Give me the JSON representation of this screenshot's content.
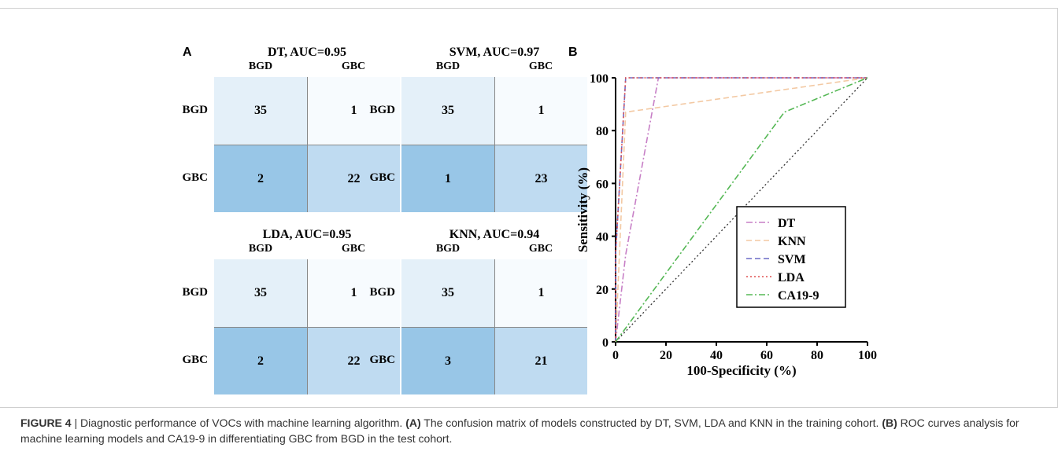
{
  "panel_labels": {
    "a": "A",
    "b": "B"
  },
  "matrices": [
    {
      "title": "DT, AUC=0.95",
      "col_labels": [
        "BGD",
        "GBC"
      ],
      "row_labels": [
        "BGD",
        "GBC"
      ],
      "cells": [
        [
          "35",
          "1"
        ],
        [
          "2",
          "22"
        ]
      ]
    },
    {
      "title": "SVM, AUC=0.97",
      "col_labels": [
        "BGD",
        "GBC"
      ],
      "row_labels": [
        "BGD",
        "GBC"
      ],
      "cells": [
        [
          "35",
          "1"
        ],
        [
          "1",
          "23"
        ]
      ]
    },
    {
      "title": "LDA, AUC=0.95",
      "col_labels": [
        "BGD",
        "GBC"
      ],
      "row_labels": [
        "BGD",
        "GBC"
      ],
      "cells": [
        [
          "35",
          "1"
        ],
        [
          "2",
          "22"
        ]
      ]
    },
    {
      "title": "KNN, AUC=0.94",
      "col_labels": [
        "BGD",
        "GBC"
      ],
      "row_labels": [
        "BGD",
        "GBC"
      ],
      "cells": [
        [
          "35",
          "1"
        ],
        [
          "3",
          "21"
        ]
      ]
    }
  ],
  "cell_colors": {
    "light": "#e4f0f9",
    "lightest": "#f7fbfe",
    "dark": "#98c6e7",
    "mid": "#bfdbf1"
  },
  "chart_data": {
    "type": "line",
    "xlabel": "100-Specificity (%)",
    "ylabel": "Sensitivity (%)",
    "xlim": [
      0,
      100
    ],
    "ylim": [
      0,
      100
    ],
    "xticks": [
      0,
      20,
      40,
      60,
      80,
      100
    ],
    "yticks": [
      0,
      20,
      40,
      60,
      80,
      100
    ],
    "grid": false,
    "legend_position": "bottom-right",
    "series": [
      {
        "name": "DT",
        "color": "#c77fc6",
        "dash": "dashdot",
        "points": [
          [
            0,
            0
          ],
          [
            4,
            33
          ],
          [
            17,
            100
          ],
          [
            100,
            100
          ]
        ]
      },
      {
        "name": "KNN",
        "color": "#f3c9a3",
        "dash": "dashed",
        "points": [
          [
            0,
            0
          ],
          [
            4,
            87
          ],
          [
            100,
            100
          ]
        ]
      },
      {
        "name": "SVM",
        "color": "#6c6cc6",
        "dash": "dashed",
        "points": [
          [
            0,
            0
          ],
          [
            0,
            33
          ],
          [
            4,
            100
          ],
          [
            100,
            100
          ]
        ]
      },
      {
        "name": "LDA",
        "color": "#e05050",
        "dash": "dotted",
        "points": [
          [
            0,
            0
          ],
          [
            0,
            33
          ],
          [
            4,
            100
          ],
          [
            100,
            100
          ]
        ]
      },
      {
        "name": "CA19-9",
        "color": "#55b855",
        "dash": "dashdot",
        "points": [
          [
            0,
            0
          ],
          [
            67,
            87
          ],
          [
            100,
            100
          ]
        ]
      }
    ],
    "reference_line": {
      "color": "#333333",
      "dash": "dotted",
      "points": [
        [
          0,
          0
        ],
        [
          100,
          100
        ]
      ]
    }
  },
  "caption": {
    "figure_label": "FIGURE 4",
    "separator": " | ",
    "intro": "Diagnostic performance of VOCs with machine learning algorithm. ",
    "a_label": "(A)",
    "a_text": " The confusion matrix of models constructed by DT, SVM, LDA and KNN in the training cohort. ",
    "b_label": "(B)",
    "b_text": " ROC curves analysis for machine learning models and CA19-9 in differentiating GBC from BGD in the test cohort."
  }
}
